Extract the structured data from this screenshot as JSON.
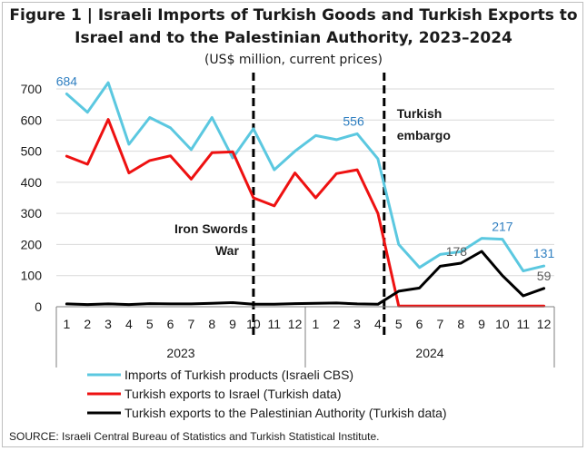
{
  "figure": {
    "title_line1": "Figure 1 | Israeli Imports of Turkish Goods and Turkish Exports to",
    "title_line2": "Israel and to the Palestinian Authority, 2023–2024",
    "subtitle": "(US$ million, current prices)",
    "source": "SOURCE: Israeli Central Bureau of Statistics and Turkish Statistical Institute."
  },
  "chart_data": {
    "type": "line",
    "categories": [
      "1",
      "2",
      "3",
      "4",
      "5",
      "6",
      "7",
      "8",
      "9",
      "10",
      "11",
      "12",
      "1",
      "2",
      "3",
      "4",
      "5",
      "6",
      "7",
      "8",
      "9",
      "10",
      "11",
      "12"
    ],
    "year_groups": [
      {
        "label": "2023",
        "from": 0,
        "to": 11
      },
      {
        "label": "2024",
        "from": 12,
        "to": 23
      }
    ],
    "ylim": [
      0,
      700
    ],
    "yticks": [
      0,
      100,
      200,
      300,
      400,
      500,
      600,
      700
    ],
    "grid": true,
    "legend_position": "bottom",
    "series": [
      {
        "name": "Imports of Turkish products (Israeli CBS)",
        "color": "#5bc8e0",
        "values": [
          684,
          625,
          720,
          522,
          608,
          575,
          505,
          608,
          478,
          572,
          440,
          500,
          550,
          537,
          556,
          475,
          200,
          126,
          168,
          177,
          220,
          217,
          115,
          131
        ]
      },
      {
        "name": "Turkish exports to Israel  (Turkish data)",
        "color": "#ee1111",
        "values": [
          484,
          458,
          602,
          430,
          470,
          485,
          410,
          495,
          498,
          350,
          324,
          430,
          350,
          428,
          440,
          300,
          2,
          2,
          2,
          2,
          2,
          2,
          2,
          2
        ]
      },
      {
        "name": "Turkish exports to the Palestinian Authority  (Turkish data)",
        "color": "#000000",
        "values": [
          9,
          7,
          9,
          7,
          10,
          9,
          9,
          11,
          13,
          8,
          8,
          10,
          11,
          12,
          9,
          8,
          50,
          60,
          130,
          140,
          178,
          100,
          35,
          59
        ]
      }
    ],
    "data_labels": [
      {
        "series": 0,
        "index": 0,
        "text": "684",
        "color": "#2f7fc1",
        "pos": "above"
      },
      {
        "series": 0,
        "index": 14,
        "text": "556",
        "color": "#2f7fc1",
        "pos": "above-left"
      },
      {
        "series": 0,
        "index": 21,
        "text": "217",
        "color": "#2f7fc1",
        "pos": "above"
      },
      {
        "series": 0,
        "index": 23,
        "text": "131",
        "color": "#2f7fc1",
        "pos": "above"
      },
      {
        "series": 2,
        "index": 20,
        "text": "178",
        "color": "#595959",
        "pos": "left"
      },
      {
        "series": 2,
        "index": 23,
        "text": "59",
        "color": "#595959",
        "pos": "above"
      }
    ],
    "event_lines": [
      {
        "position": 9.0,
        "label_line1": "Iron Swords",
        "label_line2": "War"
      },
      {
        "position": 15.3,
        "label_line1": "Turkish",
        "label_line2": "embargo"
      }
    ]
  }
}
